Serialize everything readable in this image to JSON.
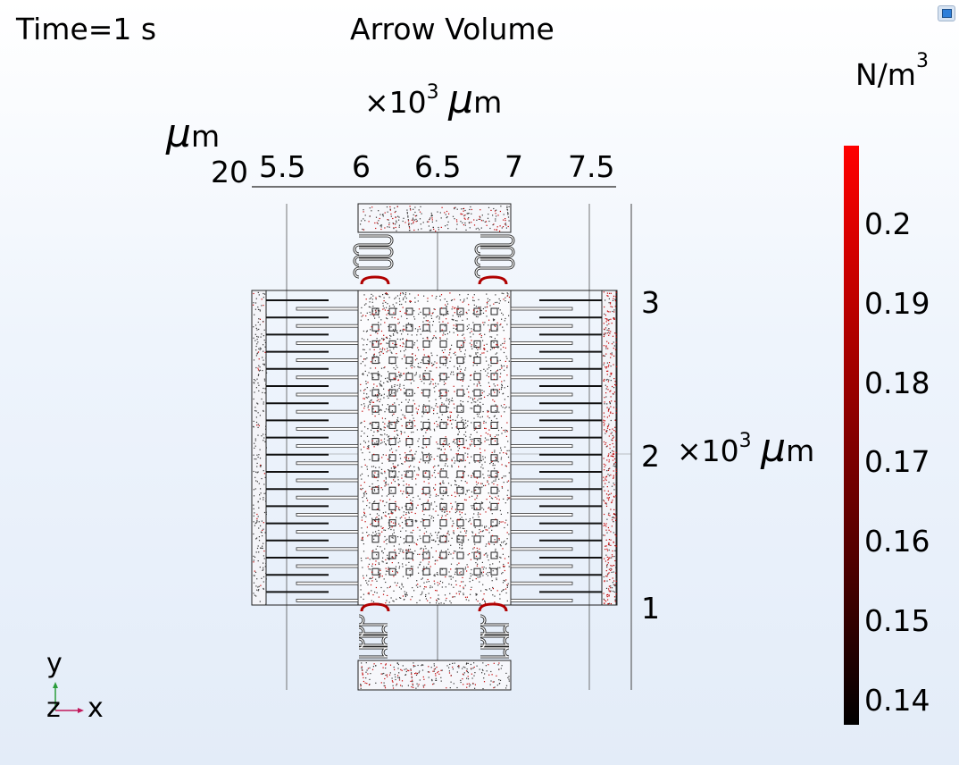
{
  "header": {
    "time_label": "Time=1 s",
    "plot_title": "Arrow Volume"
  },
  "x_axis": {
    "unit_prefix": "×10",
    "unit_exp": "3",
    "unit_mu": "μ",
    "unit_m": "m",
    "ticks": [
      "5.5",
      "6",
      "6.5",
      "7",
      "7.5"
    ]
  },
  "y_axis_top": {
    "unit_mu": "μ",
    "unit_m": "m",
    "value": "20"
  },
  "y_axis": {
    "unit_prefix": "×10",
    "unit_exp": "3",
    "unit_mu": "μ",
    "unit_m": "m",
    "ticks": [
      "3",
      "2",
      "1"
    ]
  },
  "colorbar": {
    "unit_base": "N/m",
    "unit_exp": "3",
    "ticks": [
      "0.2",
      "0.19",
      "0.18",
      "0.17",
      "0.16",
      "0.15",
      "0.14"
    ],
    "color_max": "#ff0000",
    "color_min": "#000000"
  },
  "axes_triad": {
    "y_label": "y",
    "z_label": "z",
    "x_label": "x",
    "y_color": "#2a9d3a",
    "x_color": "#c2185b"
  },
  "toolbar": {
    "icon": "view-icon"
  }
}
